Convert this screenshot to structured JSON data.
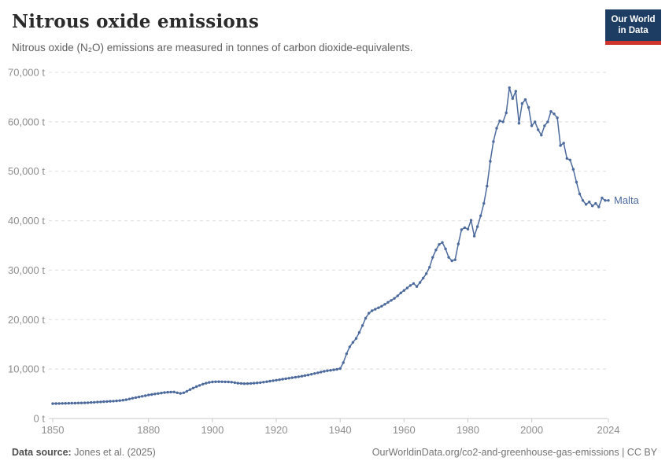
{
  "header": {
    "title": "Nitrous oxide emissions",
    "subtitle": "Nitrous oxide (N₂O) emissions are measured in tonnes of carbon dioxide-equivalents.",
    "logo": {
      "line1": "Our World",
      "line2": "in Data"
    }
  },
  "footer": {
    "source_label": "Data source:",
    "source_value": " Jones et al. (2025)",
    "link": "OurWorldinData.org/co2-and-greenhouse-gas-emissions | CC BY"
  },
  "colors": {
    "line": "#4C6A9C",
    "grid": "#dddddd",
    "axis": "#c8c8c8",
    "axis_text": "#8e8e8e",
    "logo_bg": "#1D3D63",
    "logo_accent": "#D0342C"
  },
  "chart_data": {
    "type": "line",
    "title": "Nitrous oxide emissions",
    "ylabel": "tonnes of CO₂-equivalents",
    "unit": "t",
    "grid": "horizontal-dashed",
    "ylim": [
      0,
      70000
    ],
    "yticks": [
      0,
      10000,
      20000,
      30000,
      40000,
      50000,
      60000,
      70000
    ],
    "ytick_labels": [
      "0 t",
      "10,000 t",
      "20,000 t",
      "30,000 t",
      "40,000 t",
      "50,000 t",
      "60,000 t",
      "70,000 t"
    ],
    "x_range": [
      1850,
      2024
    ],
    "xticks": [
      1850,
      1880,
      1900,
      1920,
      1940,
      1960,
      1980,
      2000,
      2024
    ],
    "legend_position": "end-of-line",
    "series": [
      {
        "name": "Malta",
        "x_start": 1850,
        "x_step": 1,
        "values": [
          3000,
          3020,
          3040,
          3050,
          3070,
          3080,
          3100,
          3110,
          3130,
          3150,
          3160,
          3200,
          3240,
          3280,
          3320,
          3360,
          3400,
          3440,
          3480,
          3520,
          3560,
          3620,
          3700,
          3810,
          3950,
          4100,
          4230,
          4360,
          4490,
          4620,
          4750,
          4860,
          4960,
          5060,
          5150,
          5250,
          5320,
          5350,
          5360,
          5200,
          5080,
          5200,
          5500,
          5850,
          6150,
          6450,
          6700,
          6950,
          7150,
          7300,
          7400,
          7430,
          7440,
          7430,
          7420,
          7400,
          7350,
          7250,
          7150,
          7100,
          7050,
          7060,
          7100,
          7150,
          7200,
          7260,
          7350,
          7450,
          7550,
          7650,
          7750,
          7850,
          7950,
          8050,
          8150,
          8250,
          8350,
          8450,
          8560,
          8680,
          8800,
          8950,
          9100,
          9250,
          9400,
          9550,
          9650,
          9750,
          9850,
          9950,
          10100,
          11300,
          13100,
          14500,
          15400,
          16200,
          17400,
          18800,
          20300,
          21300,
          21800,
          22100,
          22400,
          22700,
          23100,
          23500,
          23900,
          24300,
          24800,
          25400,
          25900,
          26400,
          26900,
          27300,
          26700,
          27500,
          28400,
          29300,
          30600,
          32600,
          34100,
          35200,
          35600,
          34300,
          32600,
          31900,
          32100,
          35300,
          38200,
          38600,
          38300,
          40100,
          36900,
          38800,
          41000,
          43500,
          47000,
          52000,
          56000,
          58700,
          60200,
          60000,
          61800,
          66900,
          64700,
          66200,
          59700,
          63700,
          64500,
          62900,
          59200,
          60000,
          58400,
          57300,
          59200,
          60000,
          62100,
          61600,
          60800,
          55200,
          55700,
          52600,
          52300,
          50400,
          47800,
          45400,
          44100,
          43300,
          43800,
          43000,
          43500,
          42800,
          44600,
          44100,
          44100
        ]
      }
    ]
  }
}
